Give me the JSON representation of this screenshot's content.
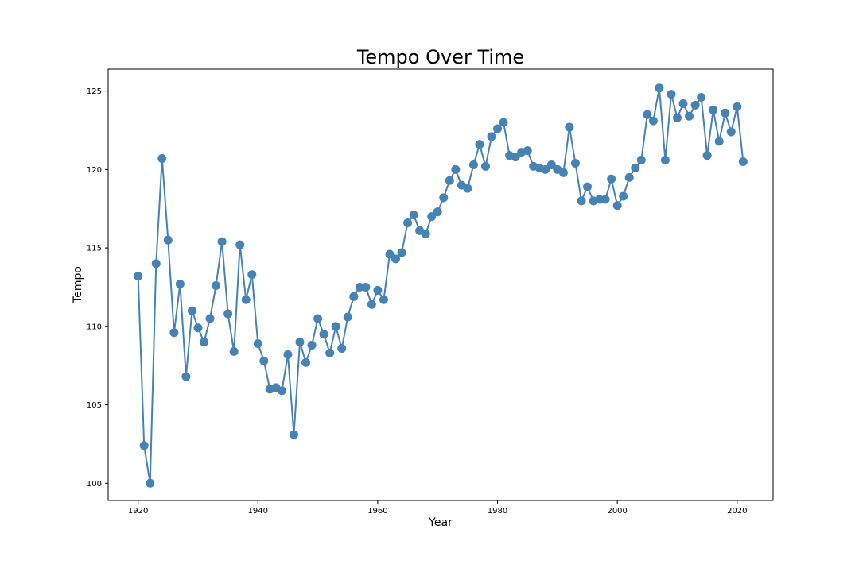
{
  "chart_data": {
    "type": "line",
    "title": "Tempo Over Time",
    "xlabel": "Year",
    "ylabel": "Tempo",
    "xlim": [
      1915,
      2026
    ],
    "ylim": [
      98.9,
      126.4
    ],
    "xticks": [
      1920,
      1940,
      1960,
      1980,
      2000,
      2020
    ],
    "yticks": [
      100,
      105,
      110,
      115,
      120,
      125
    ],
    "grid": false,
    "color": "#4682b4",
    "series": [
      {
        "x": [
          1920,
          1921,
          1922,
          1923,
          1924,
          1925,
          1926,
          1927,
          1928,
          1929,
          1930,
          1931,
          1932,
          1933,
          1934,
          1935,
          1936,
          1937,
          1938,
          1939,
          1940,
          1941,
          1942,
          1943,
          1944,
          1945,
          1946,
          1947,
          1948,
          1949,
          1950,
          1951,
          1952,
          1953,
          1954,
          1955,
          1956,
          1957,
          1958,
          1959,
          1960,
          1961,
          1962,
          1963,
          1964,
          1965,
          1966,
          1967,
          1968,
          1969,
          1970,
          1971,
          1972,
          1973,
          1974,
          1975,
          1976,
          1977,
          1978,
          1979,
          1980,
          1981,
          1982,
          1983,
          1984,
          1985,
          1986,
          1987,
          1988,
          1989,
          1990,
          1991,
          1992,
          1993,
          1994,
          1995,
          1996,
          1997,
          1998,
          1999,
          2000,
          2001,
          2002,
          2003,
          2004,
          2005,
          2006,
          2007,
          2008,
          2009,
          2010,
          2011,
          2012,
          2013,
          2014,
          2015,
          2016,
          2017,
          2018,
          2019,
          2020,
          2021
        ],
        "values": [
          113.2,
          102.4,
          100.0,
          114.0,
          120.7,
          115.5,
          109.6,
          112.7,
          106.8,
          111.0,
          109.9,
          109.0,
          110.5,
          112.6,
          115.4,
          110.8,
          108.4,
          115.2,
          111.7,
          113.3,
          108.9,
          107.8,
          106.0,
          106.1,
          105.9,
          108.2,
          103.1,
          109.0,
          107.7,
          108.8,
          110.5,
          109.5,
          108.3,
          110.0,
          108.6,
          110.6,
          111.9,
          112.5,
          112.5,
          111.4,
          112.3,
          111.7,
          114.6,
          114.3,
          114.7,
          116.6,
          117.1,
          116.1,
          115.9,
          117.0,
          117.3,
          118.2,
          119.3,
          120.0,
          119.0,
          118.8,
          120.3,
          121.6,
          120.2,
          122.1,
          122.6,
          123.0,
          120.9,
          120.8,
          121.1,
          121.2,
          120.2,
          120.1,
          120.0,
          120.3,
          120.0,
          119.8,
          122.7,
          120.4,
          118.0,
          118.9,
          118.0,
          118.1,
          118.1,
          119.4,
          117.7,
          118.3,
          119.5,
          120.1,
          120.6,
          123.5,
          123.1,
          125.2,
          120.6,
          124.8,
          123.3,
          124.2,
          123.4,
          124.1,
          124.6,
          120.9,
          123.8,
          121.8,
          123.6,
          122.4,
          124.0,
          120.5
        ]
      }
    ]
  }
}
